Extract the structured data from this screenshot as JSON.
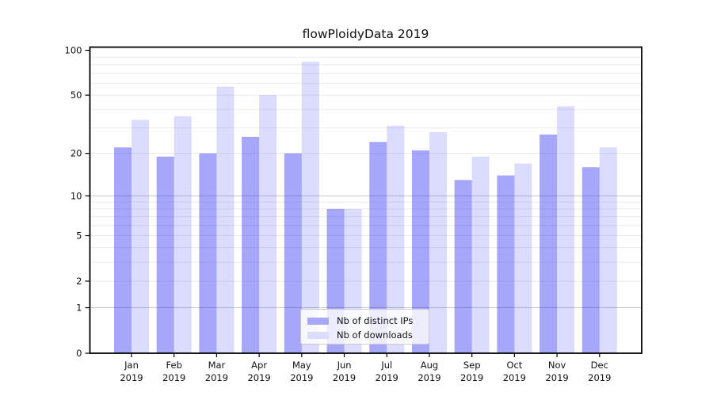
{
  "chart_data": {
    "type": "bar",
    "title": "flowPloidyData 2019",
    "categories": [
      "Jan",
      "Feb",
      "Mar",
      "Apr",
      "May",
      "Jun",
      "Jul",
      "Aug",
      "Sep",
      "Oct",
      "Nov",
      "Dec"
    ],
    "year_suffix": "2019",
    "series": [
      {
        "name": "Nb of distinct IPs",
        "color": "#a8a8fa",
        "fill_rgba": "rgba(20,20,245,0.38)",
        "values": [
          22,
          19,
          20,
          26,
          20,
          8,
          24,
          21,
          13,
          14,
          27,
          16
        ]
      },
      {
        "name": "Nb of downloads",
        "color": "#dcdcfb",
        "fill_rgba": "rgba(20,20,245,0.15)",
        "values": [
          34,
          36,
          57,
          50,
          84,
          8,
          31,
          28,
          19,
          17,
          42,
          22
        ]
      }
    ],
    "y_axis": {
      "scale": "log1p",
      "range": [
        0,
        100
      ],
      "tick_values": [
        100,
        50,
        20,
        10,
        5,
        2,
        1,
        0
      ],
      "tick_labels": [
        "100",
        "50",
        "20",
        "10",
        "5",
        "2",
        "1",
        "0"
      ]
    },
    "grid": {
      "minor_values": [
        2,
        3,
        4,
        5,
        6,
        7,
        8,
        9,
        20,
        30,
        40,
        50,
        60,
        70,
        80,
        90
      ],
      "major_values": [
        1,
        10
      ],
      "minor_color": "#ebebeb",
      "major_color": "#c6c6c6"
    },
    "legend_position": "lower center"
  }
}
